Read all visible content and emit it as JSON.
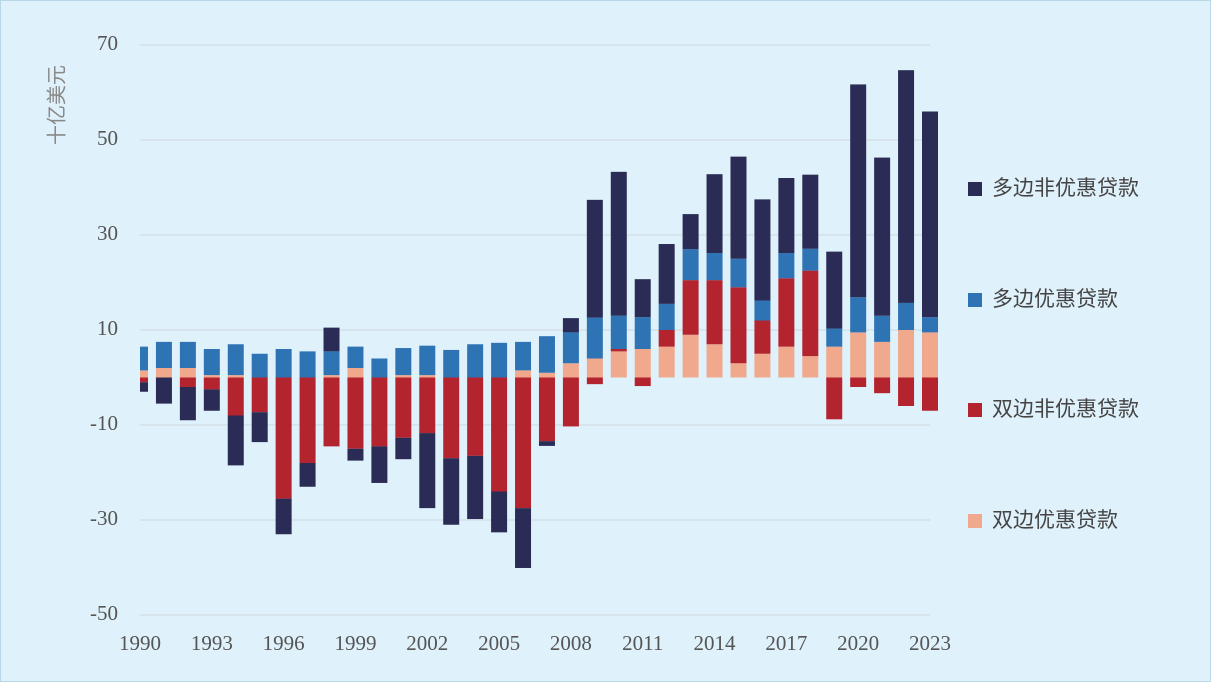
{
  "chart_data": {
    "type": "stacked_bar",
    "y_label": "十亿美元",
    "categories": [
      "1990",
      null,
      null,
      "1993",
      null,
      null,
      "1996",
      null,
      null,
      "1999",
      null,
      null,
      "2002",
      null,
      null,
      "2005",
      null,
      null,
      "2008",
      null,
      null,
      "2011",
      null,
      null,
      "2014",
      null,
      null,
      "2017",
      null,
      null,
      "2020",
      null,
      null,
      "2023"
    ],
    "series": [
      {
        "name": "双边优惠贷款",
        "color": "#f0a98c",
        "values": [
          1.5,
          2,
          2,
          0.5,
          0.5,
          0,
          0,
          0,
          0.5,
          2,
          0,
          0.5,
          0.5,
          0,
          0,
          0,
          1.5,
          1,
          3,
          4,
          5.5,
          6,
          6.5,
          9,
          7,
          3,
          5,
          6.5,
          4.5,
          6.5,
          9.5,
          7.5,
          10,
          9.5
        ]
      },
      {
        "name": "双边非优惠贷款",
        "color": "#b3242f",
        "values": [
          -1,
          0,
          -2,
          -2.5,
          -8,
          -7.3,
          -25.5,
          -18,
          -14.5,
          -15,
          -14.5,
          -12.7,
          -11.7,
          -17,
          -16.5,
          -24,
          -27.5,
          -13.4,
          -10.3,
          -1.4,
          0.5,
          -1.8,
          3.5,
          11.5,
          13.5,
          16,
          7,
          14.4,
          18,
          -8.8,
          -2,
          -3.3,
          -6,
          -7
        ]
      },
      {
        "name": "多边优惠贷款",
        "color": "#2e74b5",
        "values": [
          5,
          5.5,
          5.5,
          5.5,
          6.5,
          5,
          6,
          5.5,
          5,
          4.5,
          4,
          5.7,
          6.2,
          5.8,
          7,
          7.3,
          6,
          7.7,
          6.5,
          8.6,
          7,
          6.7,
          5.5,
          6.5,
          5.7,
          6,
          4.2,
          5.3,
          4.6,
          3.8,
          7.4,
          5.5,
          5.7,
          3.2
        ]
      },
      {
        "name": "多边非优惠贷款",
        "color": "#2a2c55",
        "values": [
          -2,
          -5.5,
          -7,
          -4.5,
          -10.5,
          -6.3,
          -7.5,
          -5,
          5,
          -2.5,
          -7.7,
          -4.5,
          -15.8,
          -14,
          -13.3,
          -8.6,
          -12.6,
          -1,
          3,
          24.8,
          30.3,
          8,
          12.6,
          7.4,
          16.6,
          21.5,
          21.3,
          15.8,
          15.6,
          16.2,
          44.8,
          33.3,
          49,
          43.3
        ]
      }
    ],
    "ylim": [
      -50,
      70
    ],
    "yticks": [
      -50,
      -30,
      -10,
      10,
      30,
      50,
      70
    ],
    "grid": true
  }
}
